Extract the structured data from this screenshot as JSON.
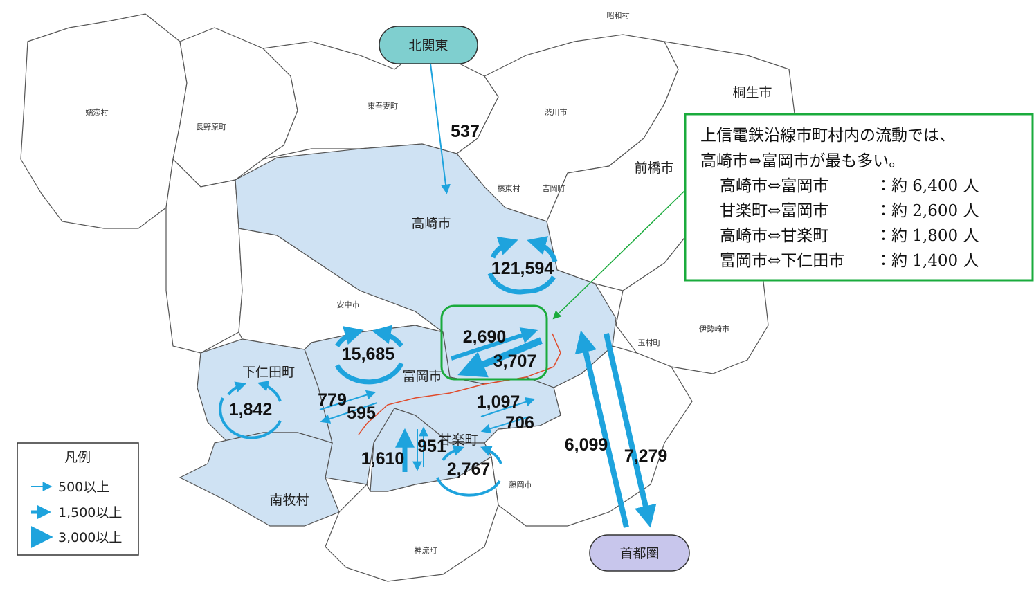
{
  "nodes": {
    "north": "北関東",
    "capital": "首都圏"
  },
  "places": [
    "昭和村",
    "桐生市",
    "嬬恋村",
    "長野原町",
    "東吾妻町",
    "渋川市",
    "前橋市",
    "榛東村",
    "吉岡町",
    "高崎市",
    "安中市",
    "伊勢崎市",
    "玉村町",
    "下仁田町",
    "富岡市",
    "甘楽町",
    "藤岡市",
    "南牧村",
    "神流町"
  ],
  "flows": [
    "537",
    "121,594",
    "2,690",
    "3,707",
    "15,685",
    "1,842",
    "779",
    "595",
    "1,097",
    "706",
    "1,610",
    "951",
    "2,767",
    "6,099",
    "7,279"
  ],
  "callout": {
    "lines": [
      "上信電鉄沿線市町村内の流動では、",
      "高崎市⇔富岡市が最も多い。"
    ],
    "rows": [
      {
        "pair": "高崎市⇔富岡市",
        "value": "：約 6,400 人"
      },
      {
        "pair": "甘楽町⇔富岡市",
        "value": "：約 2,600 人"
      },
      {
        "pair": "高崎市⇔甘楽町",
        "value": "：約 1,800 人"
      },
      {
        "pair": "富岡市⇔下仁田市",
        "value": "：約 1,400 人"
      }
    ]
  },
  "legend": {
    "title": "凡例",
    "items": [
      "500以上",
      "1,500以上",
      "3,000以上"
    ]
  }
}
